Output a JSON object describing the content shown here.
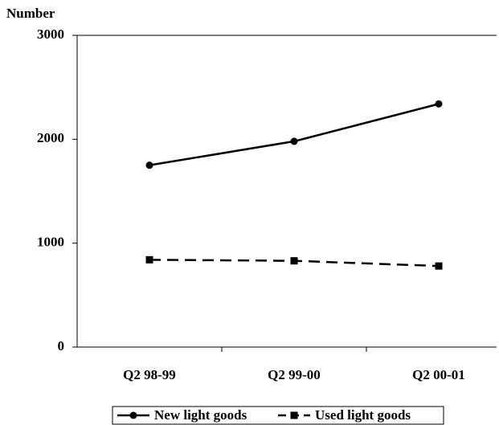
{
  "chart_data": {
    "type": "line",
    "y_label": "Number",
    "categories": [
      "Q2 98-99",
      "Q2 99-00",
      "Q2 00-01"
    ],
    "series": [
      {
        "name": "New light goods",
        "color": "#000000",
        "marker": "circle",
        "dash": "solid",
        "values": [
          1750,
          1980,
          2340
        ]
      },
      {
        "name": "Used light goods",
        "color": "#000000",
        "marker": "square",
        "dash": "dashed",
        "values": [
          840,
          830,
          780
        ]
      }
    ],
    "ylim": [
      0,
      3000
    ],
    "yticks": [
      0,
      1000,
      2000,
      3000
    ],
    "grid": false
  }
}
